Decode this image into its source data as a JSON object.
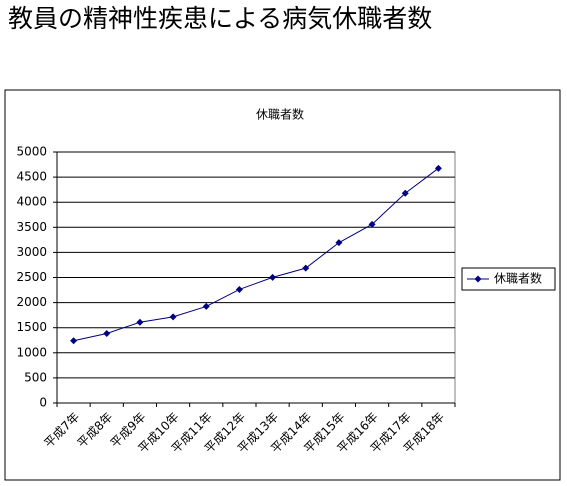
{
  "heading": "教員の精神性疾患による病気休職者数",
  "chart_data": {
    "type": "line",
    "title": "休職者数",
    "categories": [
      "平成7年",
      "平成8年",
      "平成9年",
      "平成10年",
      "平成11年",
      "平成12年",
      "平成13年",
      "平成14年",
      "平成15年",
      "平成16年",
      "平成17年",
      "平成18年"
    ],
    "series": [
      {
        "name": "休職者数",
        "color": "#000080",
        "values": [
          1240,
          1385,
          1609,
          1715,
          1924,
          2262,
          2503,
          2687,
          3194,
          3559,
          4178,
          4675
        ]
      }
    ],
    "ylim": [
      0,
      5000
    ],
    "yticks": [
      0,
      500,
      1000,
      1500,
      2000,
      2500,
      3000,
      3500,
      4000,
      4500,
      5000
    ],
    "grid": true,
    "legend": "right"
  }
}
